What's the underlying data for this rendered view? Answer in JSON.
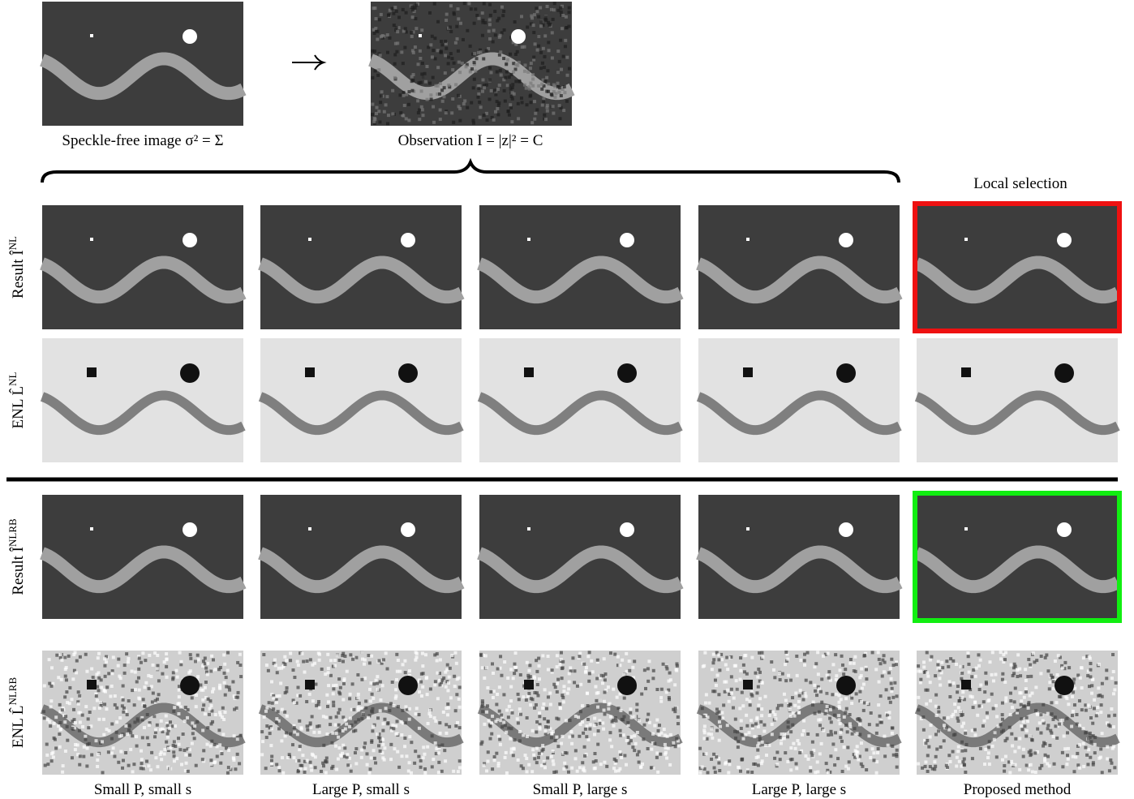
{
  "figure": {
    "top": {
      "clean_caption": "Speckle-free image σ² = Σ",
      "noisy_caption": "Observation I = |z|² = C"
    },
    "local_selection": "Local selection",
    "row_labels": [
      {
        "text": "Result Î",
        "sup": "NL"
      },
      {
        "text": "ENL L̂",
        "sup": "NL"
      },
      {
        "text": "Result Î",
        "sup": "NLRB"
      },
      {
        "text": "ENL L̂",
        "sup": "NLRB"
      }
    ],
    "column_labels": [
      "Small P, small s",
      "Large P, small s",
      "Small P, large s",
      "Large P, large s",
      "Proposed method"
    ]
  }
}
